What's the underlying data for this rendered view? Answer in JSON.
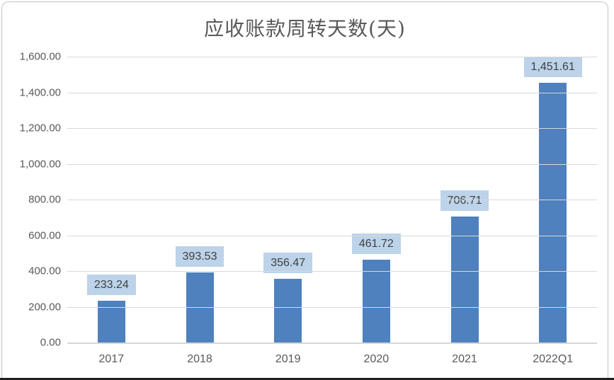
{
  "chart_data": {
    "type": "bar",
    "title": "应收账款周转天数(天)",
    "categories": [
      "2017",
      "2018",
      "2019",
      "2020",
      "2021",
      "2022Q1"
    ],
    "values": [
      233.24,
      393.53,
      356.47,
      461.72,
      706.71,
      1451.61
    ],
    "value_labels": [
      "233.24",
      "393.53",
      "356.47",
      "461.72",
      "706.71",
      "1,451.61"
    ],
    "xlabel": "",
    "ylabel": "",
    "ylim": [
      0,
      1600
    ],
    "ytick_step": 200,
    "ytick_labels": [
      "0.00",
      "200.00",
      "400.00",
      "600.00",
      "800.00",
      "1,000.00",
      "1,200.00",
      "1,400.00",
      "1,600.00"
    ],
    "grid": true,
    "legend_position": "none",
    "colors": {
      "bar": "#4e81bd",
      "value_label_bg": "#bcd3e9",
      "value_label_text": "#3f3f3f",
      "gridline": "#d9d9d9",
      "axis_text": "#595959",
      "title_text": "#595959"
    }
  }
}
